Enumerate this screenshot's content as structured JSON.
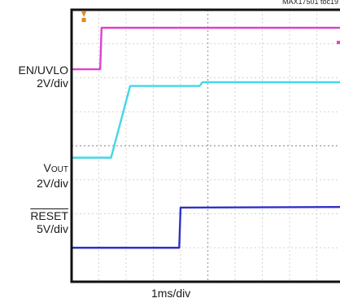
{
  "figure_id": "MAX17501 toc19",
  "chart_data": {
    "type": "line",
    "title": "",
    "xlabel": "1ms/div",
    "ylabel": "",
    "grid": true,
    "x_divisions": 10,
    "y_divisions": 8,
    "trigger_marker_division": 0.45,
    "series": [
      {
        "name": "EN/UVLO",
        "scale": "2V/div",
        "color": "#e040d0",
        "points": [
          [
            0,
            6.25
          ],
          [
            1.05,
            6.25
          ],
          [
            1.1,
            7.47
          ],
          [
            10,
            7.47
          ]
        ]
      },
      {
        "name": "VOUT",
        "scale": "2V/div",
        "color": "#40d8e8",
        "points": [
          [
            0,
            3.65
          ],
          [
            1.45,
            3.65
          ],
          [
            2.15,
            5.76
          ],
          [
            4.7,
            5.76
          ],
          [
            4.8,
            5.87
          ],
          [
            10,
            5.87
          ]
        ]
      },
      {
        "name": "RESET",
        "scale": "5V/div",
        "color": "#3030c8",
        "points": [
          [
            0,
            1.0
          ],
          [
            3.95,
            1.0
          ],
          [
            4.0,
            2.18
          ],
          [
            10,
            2.2
          ]
        ]
      }
    ]
  },
  "channels": [
    {
      "name_main": "EN/UVLO",
      "name_sub": "",
      "scale": "2V/div",
      "overline": false
    },
    {
      "name_main": "V",
      "name_sub": "OUT",
      "scale": "2V/div",
      "overline": false
    },
    {
      "name_main": "RESET",
      "name_sub": "",
      "scale": "5V/div",
      "overline": true
    }
  ]
}
